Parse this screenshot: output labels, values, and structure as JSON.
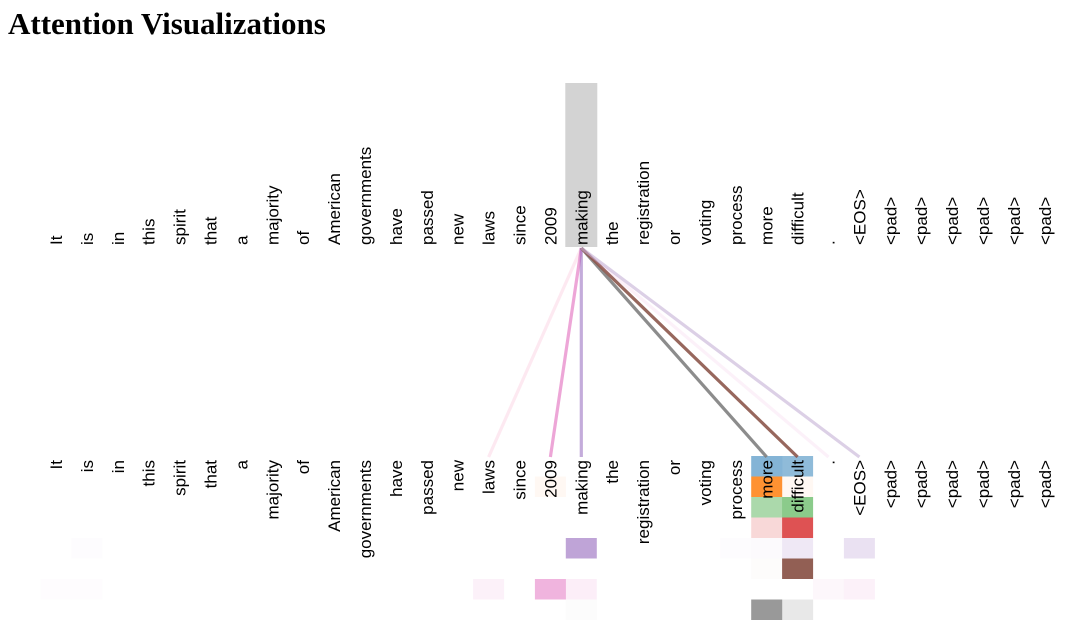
{
  "title": "Attention Visualizations",
  "tokens": [
    "It",
    "is",
    "in",
    "this",
    "spirit",
    "that",
    "a",
    "majority",
    "of",
    "American",
    "governments",
    "have",
    "passed",
    "new",
    "laws",
    "since",
    "2009",
    "making",
    "the",
    "registration",
    "or",
    "voting",
    "process",
    "more",
    "difficult",
    ".",
    "<EOS>",
    "<pad>",
    "<pad>",
    "<pad>",
    "<pad>",
    "<pad>",
    "<pad>"
  ],
  "query_token_index": 17,
  "head_colors": [
    "#1f77b4",
    "#ff7f0e",
    "#2ca02c",
    "#d62728",
    "#9467bd",
    "#8c564b",
    "#e377c2",
    "#7f7f7f"
  ],
  "highlight_color": "#d3d3d3",
  "attention_lines": [
    {
      "target": 14,
      "color": "#f7b6d2",
      "opacity": 0.3
    },
    {
      "target": 16,
      "color": "#e377c2",
      "opacity": 0.65
    },
    {
      "target": 17,
      "color": "#9467bd",
      "opacity": 0.55
    },
    {
      "target": 23,
      "color": "#7f7f7f",
      "opacity": 0.9
    },
    {
      "target": 24,
      "color": "#8c564b",
      "opacity": 0.9
    },
    {
      "target": 25,
      "color": "#e377c2",
      "opacity": 0.1
    },
    {
      "target": 26,
      "color": "#c5b0d5",
      "opacity": 0.6
    }
  ],
  "attention_cells": [
    {
      "token": 23,
      "head": 0,
      "color": "#1f77b4",
      "opacity": 0.55
    },
    {
      "token": 24,
      "head": 0,
      "color": "#1f77b4",
      "opacity": 0.5
    },
    {
      "token": 16,
      "head": 1,
      "color": "#ff7f0e",
      "opacity": 0.05
    },
    {
      "token": 23,
      "head": 1,
      "color": "#ff7f0e",
      "opacity": 0.85
    },
    {
      "token": 24,
      "head": 1,
      "color": "#ff7f0e",
      "opacity": 0.05
    },
    {
      "token": 23,
      "head": 2,
      "color": "#2ca02c",
      "opacity": 0.4
    },
    {
      "token": 24,
      "head": 2,
      "color": "#2ca02c",
      "opacity": 0.55
    },
    {
      "token": 23,
      "head": 3,
      "color": "#d62728",
      "opacity": 0.18
    },
    {
      "token": 24,
      "head": 3,
      "color": "#d62728",
      "opacity": 0.8
    },
    {
      "token": 1,
      "head": 4,
      "color": "#9467bd",
      "opacity": 0.02
    },
    {
      "token": 17,
      "head": 4,
      "color": "#9467bd",
      "opacity": 0.6
    },
    {
      "token": 22,
      "head": 4,
      "color": "#9467bd",
      "opacity": 0.02
    },
    {
      "token": 23,
      "head": 4,
      "color": "#9467bd",
      "opacity": 0.03
    },
    {
      "token": 24,
      "head": 4,
      "color": "#9467bd",
      "opacity": 0.15
    },
    {
      "token": 26,
      "head": 4,
      "color": "#9467bd",
      "opacity": 0.2
    },
    {
      "token": 23,
      "head": 5,
      "color": "#8c564b",
      "opacity": 0.02
    },
    {
      "token": 24,
      "head": 5,
      "color": "#8c564b",
      "opacity": 0.95
    },
    {
      "token": 0,
      "head": 6,
      "color": "#e377c2",
      "opacity": 0.02
    },
    {
      "token": 1,
      "head": 6,
      "color": "#e377c2",
      "opacity": 0.02
    },
    {
      "token": 14,
      "head": 6,
      "color": "#e377c2",
      "opacity": 0.1
    },
    {
      "token": 16,
      "head": 6,
      "color": "#e377c2",
      "opacity": 0.55
    },
    {
      "token": 17,
      "head": 6,
      "color": "#e377c2",
      "opacity": 0.12
    },
    {
      "token": 25,
      "head": 6,
      "color": "#e377c2",
      "opacity": 0.06
    },
    {
      "token": 26,
      "head": 6,
      "color": "#e377c2",
      "opacity": 0.1
    },
    {
      "token": 17,
      "head": 7,
      "color": "#7f7f7f",
      "opacity": 0.02
    },
    {
      "token": 23,
      "head": 7,
      "color": "#7f7f7f",
      "opacity": 0.8
    },
    {
      "token": 24,
      "head": 7,
      "color": "#7f7f7f",
      "opacity": 0.18
    }
  ]
}
